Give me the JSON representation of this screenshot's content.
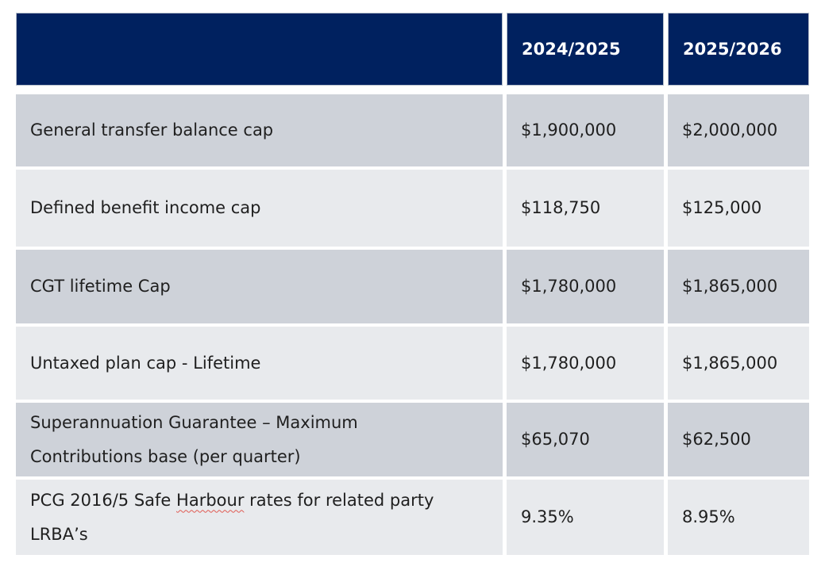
{
  "colors": {
    "header_bg": "#00215f",
    "header_border": "#b6bfcc",
    "header_text": "#ffffff",
    "row_dark_bg": "#ced2d9",
    "row_light_bg": "#e8eaed",
    "body_text": "#1f1f1f",
    "spellcheck_underline": "#e05a52",
    "page_bg": "#ffffff"
  },
  "table": {
    "header": {
      "col0": "",
      "col1": "2024/2025",
      "col2": "2025/2026"
    },
    "rows": [
      {
        "label_lines": [
          "General transfer balance cap"
        ],
        "values": [
          "$1,900,000",
          "$2,000,000"
        ]
      },
      {
        "label_lines": [
          "Defined benefit income cap"
        ],
        "values": [
          "$118,750",
          "$125,000"
        ]
      },
      {
        "label_lines": [
          "CGT lifetime Cap"
        ],
        "values": [
          "$1,780,000",
          "$1,865,000"
        ]
      },
      {
        "label_lines": [
          "Untaxed plan cap - Lifetime"
        ],
        "values": [
          "$1,780,000",
          "$1,865,000"
        ]
      },
      {
        "label_lines": [
          "Superannuation Guarantee – Maximum",
          "Contributions base (per quarter)"
        ],
        "values": [
          "$65,070",
          "$62,500"
        ]
      },
      {
        "label_line1_prefix": "PCG 2016/5 Safe ",
        "label_line1_misspelled": "Harbour",
        "label_line1_suffix": " rates for related party",
        "label_line2": "LRBA’s",
        "values": [
          "9.35%",
          "8.95%"
        ]
      }
    ]
  }
}
